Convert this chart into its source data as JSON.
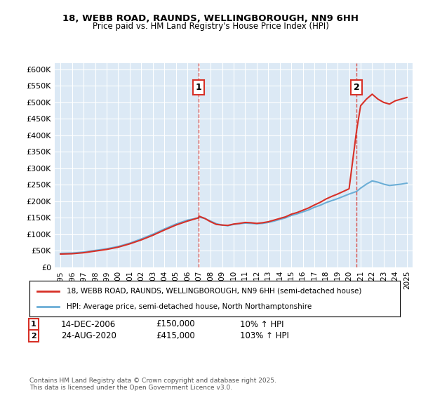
{
  "title_line1": "18, WEBB ROAD, RAUNDS, WELLINGBOROUGH, NN9 6HH",
  "title_line2": "Price paid vs. HM Land Registry's House Price Index (HPI)",
  "bg_color": "#dce9f5",
  "plot_bg_color": "#dce9f5",
  "grid_color": "#ffffff",
  "ylabel_ticks": [
    "£0",
    "£50K",
    "£100K",
    "£150K",
    "£200K",
    "£250K",
    "£300K",
    "£350K",
    "£400K",
    "£450K",
    "£500K",
    "£550K",
    "£600K"
  ],
  "ylim": [
    0,
    620000
  ],
  "xlim_start": 1994.5,
  "xlim_end": 2025.5,
  "xticks": [
    1995,
    1996,
    1997,
    1998,
    1999,
    2000,
    2001,
    2002,
    2003,
    2004,
    2005,
    2006,
    2007,
    2008,
    2009,
    2010,
    2011,
    2012,
    2013,
    2014,
    2015,
    2016,
    2017,
    2018,
    2019,
    2020,
    2021,
    2022,
    2023,
    2024,
    2025
  ],
  "hpi_color": "#6baed6",
  "price_color": "#d73027",
  "marker1_x": 2006.96,
  "marker1_y": 150000,
  "marker1_label": "1",
  "marker1_date": "14-DEC-2006",
  "marker1_price": "£150,000",
  "marker1_hpi": "10% ↑ HPI",
  "marker2_x": 2020.65,
  "marker2_y": 415000,
  "marker2_label": "2",
  "marker2_date": "24-AUG-2020",
  "marker2_price": "£415,000",
  "marker2_hpi": "103% ↑ HPI",
  "legend_line1": "18, WEBB ROAD, RAUNDS, WELLINGBOROUGH, NN9 6HH (semi-detached house)",
  "legend_line2": "HPI: Average price, semi-detached house, North Northamptonshire",
  "footer": "Contains HM Land Registry data © Crown copyright and database right 2025.\nThis data is licensed under the Open Government Licence v3.0.",
  "hpi_x": [
    1995,
    1996,
    1997,
    1998,
    1999,
    2000,
    2001,
    2002,
    2003,
    2004,
    2005,
    2006,
    2006.96,
    2007,
    2007.5,
    2008,
    2008.5,
    2009,
    2009.5,
    2010,
    2010.5,
    2011,
    2011.5,
    2012,
    2012.5,
    2013,
    2013.5,
    2014,
    2014.5,
    2015,
    2015.5,
    2016,
    2016.5,
    2017,
    2017.5,
    2018,
    2018.5,
    2019,
    2019.5,
    2020,
    2020.65,
    2021,
    2021.5,
    2022,
    2022.5,
    2023,
    2023.5,
    2024,
    2024.5,
    2025
  ],
  "hpi_y": [
    42000,
    43000,
    46000,
    51000,
    56000,
    63000,
    73000,
    86000,
    100000,
    116000,
    131000,
    143000,
    150000,
    152000,
    148000,
    140000,
    132000,
    128000,
    126000,
    130000,
    132000,
    134000,
    133000,
    132000,
    133000,
    136000,
    140000,
    145000,
    150000,
    157000,
    162000,
    168000,
    174000,
    182000,
    188000,
    196000,
    202000,
    208000,
    215000,
    222000,
    230000,
    240000,
    252000,
    262000,
    258000,
    252000,
    248000,
    250000,
    252000,
    255000
  ],
  "price_x": [
    1995,
    1996,
    1997,
    1998,
    1999,
    2000,
    2001,
    2002,
    2003,
    2004,
    2005,
    2006,
    2006.96,
    2007,
    2007.5,
    2008,
    2008.5,
    2009,
    2009.5,
    2010,
    2010.5,
    2011,
    2011.5,
    2012,
    2012.5,
    2013,
    2013.5,
    2014,
    2014.5,
    2015,
    2015.5,
    2016,
    2016.5,
    2017,
    2017.5,
    2018,
    2018.5,
    2019,
    2019.5,
    2020,
    2020.65,
    2021,
    2021.5,
    2022,
    2022.5,
    2023,
    2023.5,
    2024,
    2024.5,
    2025
  ],
  "price_y": [
    40000,
    41000,
    44000,
    49000,
    54000,
    61000,
    71000,
    83000,
    97000,
    113000,
    128000,
    140000,
    150000,
    155000,
    148000,
    138000,
    130000,
    128000,
    127000,
    131000,
    133000,
    136000,
    135000,
    133000,
    135000,
    138000,
    143000,
    148000,
    153000,
    161000,
    166000,
    173000,
    180000,
    189000,
    197000,
    207000,
    215000,
    222000,
    230000,
    238000,
    415000,
    490000,
    510000,
    525000,
    510000,
    500000,
    495000,
    505000,
    510000,
    515000
  ]
}
